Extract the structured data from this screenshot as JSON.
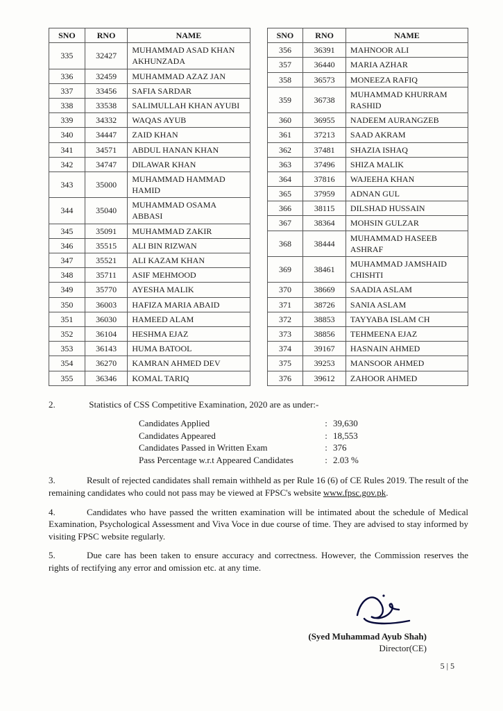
{
  "left_table": {
    "headers": [
      "SNO",
      "RNO",
      "NAME"
    ],
    "rows": [
      [
        "335",
        "32427",
        "MUHAMMAD ASAD KHAN AKHUNZADA"
      ],
      [
        "336",
        "32459",
        "MUHAMMAD AZAZ JAN"
      ],
      [
        "337",
        "33456",
        "SAFIA SARDAR"
      ],
      [
        "338",
        "33538",
        "SALIMULLAH KHAN AYUBI"
      ],
      [
        "339",
        "34332",
        "WAQAS AYUB"
      ],
      [
        "340",
        "34447",
        "ZAID KHAN"
      ],
      [
        "341",
        "34571",
        "ABDUL HANAN KHAN"
      ],
      [
        "342",
        "34747",
        "DILAWAR KHAN"
      ],
      [
        "343",
        "35000",
        "MUHAMMAD HAMMAD HAMID"
      ],
      [
        "344",
        "35040",
        "MUHAMMAD OSAMA ABBASI"
      ],
      [
        "345",
        "35091",
        "MUHAMMAD ZAKIR"
      ],
      [
        "346",
        "35515",
        "ALI BIN RIZWAN"
      ],
      [
        "347",
        "35521",
        "ALI KAZAM KHAN"
      ],
      [
        "348",
        "35711",
        "ASIF MEHMOOD"
      ],
      [
        "349",
        "35770",
        "AYESHA MALIK"
      ],
      [
        "350",
        "36003",
        "HAFIZA MARIA ABAID"
      ],
      [
        "351",
        "36030",
        "HAMEED ALAM"
      ],
      [
        "352",
        "36104",
        "HESHMA EJAZ"
      ],
      [
        "353",
        "36143",
        "HUMA BATOOL"
      ],
      [
        "354",
        "36270",
        "KAMRAN AHMED DEV"
      ],
      [
        "355",
        "36346",
        "KOMAL TARIQ"
      ]
    ]
  },
  "right_table": {
    "headers": [
      "SNO",
      "RNO",
      "NAME"
    ],
    "rows": [
      [
        "356",
        "36391",
        "MAHNOOR ALI"
      ],
      [
        "357",
        "36440",
        "MARIA AZHAR"
      ],
      [
        "358",
        "36573",
        "MONEEZA RAFIQ"
      ],
      [
        "359",
        "36738",
        "MUHAMMAD KHURRAM RASHID"
      ],
      [
        "360",
        "36955",
        "NADEEM AURANGZEB"
      ],
      [
        "361",
        "37213",
        "SAAD AKRAM"
      ],
      [
        "362",
        "37481",
        "SHAZIA ISHAQ"
      ],
      [
        "363",
        "37496",
        "SHIZA MALIK"
      ],
      [
        "364",
        "37816",
        "WAJEEHA KHAN"
      ],
      [
        "365",
        "37959",
        "ADNAN GUL"
      ],
      [
        "366",
        "38115",
        "DILSHAD HUSSAIN"
      ],
      [
        "367",
        "38364",
        "MOHSIN GULZAR"
      ],
      [
        "368",
        "38444",
        "MUHAMMAD HASEEB ASHRAF"
      ],
      [
        "369",
        "38461",
        "MUHAMMAD JAMSHAID CHISHTI"
      ],
      [
        "370",
        "38669",
        "SAADIA ASLAM"
      ],
      [
        "371",
        "38726",
        "SANIA ASLAM"
      ],
      [
        "372",
        "38853",
        "TAYYABA ISLAM CH"
      ],
      [
        "373",
        "38856",
        "TEHMEENA EJAZ"
      ],
      [
        "374",
        "39167",
        "HASNAIN AHMED"
      ],
      [
        "375",
        "39253",
        "MANSOOR AHMED"
      ],
      [
        "376",
        "39612",
        "ZAHOOR AHMED"
      ]
    ]
  },
  "para2_num": "2.",
  "para2_lead": "Statistics of CSS Competitive Examination, 2020 are as under:-",
  "stats": [
    {
      "label": "Candidates Applied",
      "val": "39,630"
    },
    {
      "label": "Candidates Appeared",
      "val": "18,553"
    },
    {
      "label": "Candidates Passed in Written Exam",
      "val": "376"
    },
    {
      "label": "Pass Percentage w.r.t Appeared Candidates",
      "val": "2.03 %"
    }
  ],
  "para3_num": "3.",
  "para3_text_a": "Result of rejected candidates shall remain withheld as per Rule 16 (6) of CE Rules 2019. The result of the remaining candidates who could not pass may be viewed at FPSC's website ",
  "para3_link": "www.fpsc.gov.pk",
  "para3_text_b": ".",
  "para4_num": "4.",
  "para4_text": "Candidates who have passed the written examination will be intimated about the schedule of Medical Examination, Psychological Assessment and Viva Voce in due course of time. They are advised to stay informed by visiting FPSC website regularly.",
  "para5_num": "5.",
  "para5_text": "Due care has been taken to ensure accuracy and correctness. However, the Commission reserves the rights of rectifying any error and omission etc. at any time.",
  "signatory_name": "(Syed Muhammad Ayub Shah)",
  "signatory_title": "Director(CE)",
  "page_number": "5 | 5"
}
